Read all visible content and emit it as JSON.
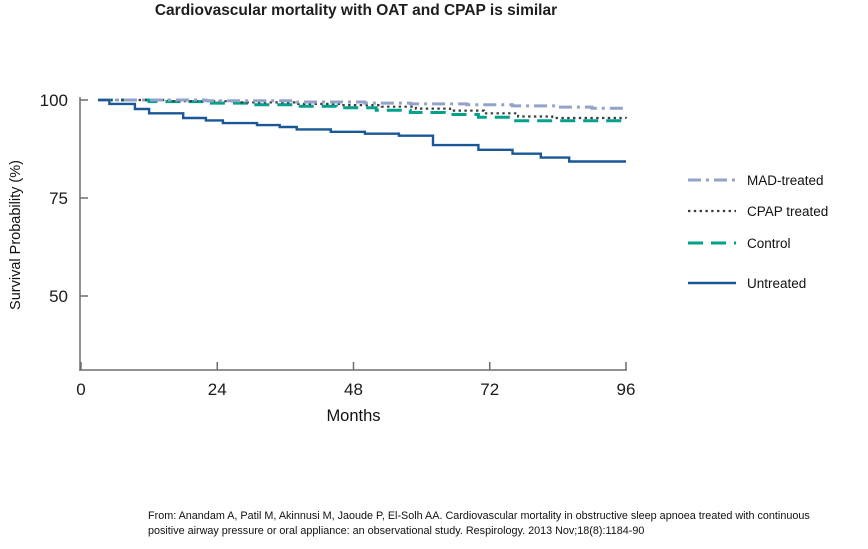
{
  "header": {
    "title": "Cardiovascular mortality with OAT and CPAP is similar"
  },
  "y_axis": {
    "label": "Survival Probability (%)",
    "ticks": [
      "100",
      "75",
      "50"
    ]
  },
  "x_axis": {
    "label": "Months",
    "ticks": [
      "0",
      "24",
      "48",
      "72",
      "96"
    ]
  },
  "footer": {
    "line1": "From: Anandam A, Patil M, Akinnusi M, Jaoude P, El-Solh AA. Cardiovascular mortality in obstructive sleep apnoea treated with continuous",
    "line2": "positive airway pressure or oral appliance: an observational study. Respirology. 2013 Nov;18(8):1184-90"
  },
  "colors": {
    "mad": "#93a2c8",
    "cpap": "#3d3d3d",
    "control": "#00a28c",
    "untreated": "#1a5796",
    "axis": "#6e6e6e",
    "text": "#1a1a1a"
  },
  "chart_data": {
    "type": "line",
    "subtype": "kaplan-meier-step",
    "title": "Cardiovascular mortality with OAT and CPAP is similar",
    "xlabel": "Months",
    "ylabel": "Survival Probability (%)",
    "xlim": [
      0,
      96
    ],
    "ylim": [
      31,
      101
    ],
    "x_ticks": [
      0,
      24,
      48,
      72,
      96
    ],
    "y_ticks": [
      100,
      75,
      50
    ],
    "grid": false,
    "legend_position": "right",
    "step": "after",
    "series": [
      {
        "name": "Control",
        "color": "#00a28c",
        "line_style": "dashed",
        "points": [
          [
            3,
            100
          ],
          [
            12,
            99.6
          ],
          [
            22,
            99.2
          ],
          [
            30,
            98.8
          ],
          [
            38,
            98.4
          ],
          [
            45,
            98.0
          ],
          [
            52,
            97.4
          ],
          [
            58,
            96.8
          ],
          [
            64,
            96.3
          ],
          [
            70,
            95.6
          ],
          [
            76,
            94.7
          ],
          [
            96,
            94.6
          ]
        ]
      },
      {
        "name": "CPAP treated",
        "color": "#3d3d3d",
        "line_style": "dotted",
        "points": [
          [
            3,
            100
          ],
          [
            16,
            99.7
          ],
          [
            28,
            99.4
          ],
          [
            38,
            99.0
          ],
          [
            46,
            98.7
          ],
          [
            53,
            98.3
          ],
          [
            59,
            97.8
          ],
          [
            65,
            97.3
          ],
          [
            71,
            96.6
          ],
          [
            77,
            95.8
          ],
          [
            83,
            95.4
          ],
          [
            96,
            95.3
          ]
        ]
      },
      {
        "name": "MAD-treated",
        "color": "#93a2c8",
        "line_style": "dash-dot",
        "points": [
          [
            3,
            100
          ],
          [
            22,
            99.8
          ],
          [
            38,
            99.5
          ],
          [
            50,
            99.2
          ],
          [
            58,
            99.0
          ],
          [
            68,
            98.8
          ],
          [
            76,
            98.5
          ],
          [
            84,
            98.2
          ],
          [
            90,
            97.9
          ],
          [
            96,
            97.9
          ]
        ]
      },
      {
        "name": "Untreated",
        "color": "#1a5796",
        "line_style": "solid",
        "points": [
          [
            3,
            100
          ],
          [
            5,
            99.0
          ],
          [
            9.5,
            97.7
          ],
          [
            12,
            96.6
          ],
          [
            18,
            95.4
          ],
          [
            22,
            94.8
          ],
          [
            25,
            94.1
          ],
          [
            31,
            93.6
          ],
          [
            35,
            93.1
          ],
          [
            38,
            92.5
          ],
          [
            44,
            91.9
          ],
          [
            50,
            91.4
          ],
          [
            56,
            90.9
          ],
          [
            62,
            88.5
          ],
          [
            70,
            87.3
          ],
          [
            76,
            86.3
          ],
          [
            81,
            85.3
          ],
          [
            86,
            84.3
          ],
          [
            96,
            84.3
          ]
        ]
      }
    ],
    "legend_order": [
      "MAD-treated",
      "CPAP treated",
      "Control",
      "Untreated"
    ]
  }
}
